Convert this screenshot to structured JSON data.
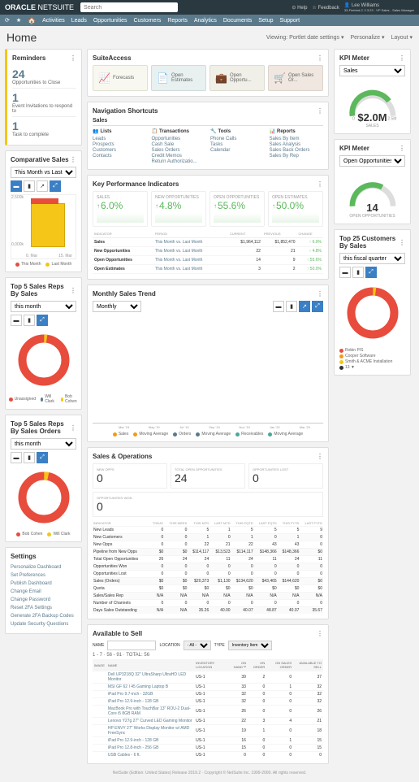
{
  "topbar": {
    "logo_bold": "ORACLE",
    "logo_light": "NETSUITE",
    "search_placeholder": "Search",
    "help": "Help",
    "feedback": "Feedback",
    "user_name": "Lee Williams",
    "user_sub": "33-Firebird-C 2.3.23 - VP Sales - Sales Manager"
  },
  "nav": {
    "items": [
      "Activities",
      "Leads",
      "Opportunities",
      "Customers",
      "Reports",
      "Analytics",
      "Documents",
      "Setup",
      "Support"
    ]
  },
  "header": {
    "title": "Home",
    "viewing": "Viewing: Portlet date settings ▾",
    "personalize": "Personalize ▾",
    "layout": "Layout ▾"
  },
  "reminders": {
    "title": "Reminders",
    "items": [
      {
        "n": "24",
        "label": "Opportunities to Close"
      },
      {
        "n": "1",
        "label": "Event Invitations to respond to"
      },
      {
        "n": "1",
        "label": "Task to complete"
      }
    ]
  },
  "comp_sales": {
    "title": "Comparative Sales",
    "range": "This Month vs Last Month",
    "ylabels": [
      "2,500k",
      "2,000k",
      "1,500k",
      "1,000k",
      "0,500k",
      "0,000k"
    ],
    "xlabels": [
      "0. Mar",
      "15. Mar"
    ],
    "legend": [
      {
        "c": "#e74c3c",
        "t": "This Month"
      },
      {
        "c": "#f5c518",
        "t": "Last Month"
      }
    ]
  },
  "top5_sales": {
    "title": "Top 5 Sales Reps By Sales",
    "range": "this month",
    "legend": [
      {
        "c": "#e74c3c",
        "t": "Unassigned"
      },
      {
        "c": "#5a7a8c",
        "t": "Will Clark"
      },
      {
        "c": "#f5c518",
        "t": "Bob Cohen"
      }
    ]
  },
  "top5_orders": {
    "title": "Top 5 Sales Reps By Sales Orders",
    "range": "this month",
    "legend": [
      {
        "c": "#e74c3c",
        "t": "Bob Cohen"
      },
      {
        "c": "#f5c518",
        "t": "Will Clark"
      }
    ]
  },
  "settings": {
    "title": "Settings",
    "items": [
      "Personalize Dashboard",
      "Set Preferences",
      "Publish Dashboard",
      "Change Email",
      "Change Password",
      "Reset 2FA Settings",
      "Generate 2FA Backup Codes",
      "Update Security Questions"
    ]
  },
  "suite_access": {
    "title": "SuiteAccess",
    "tiles": [
      {
        "icon": "📈",
        "label": "Forecasts"
      },
      {
        "icon": "📄",
        "label": "Open Estimates"
      },
      {
        "icon": "💼",
        "label": "Open Opportu..."
      },
      {
        "icon": "🛒",
        "label": "Open Sales Or..."
      }
    ]
  },
  "shortcuts": {
    "title": "Navigation Shortcuts",
    "tabs": [
      "Sales"
    ],
    "cols": [
      {
        "title": "Lists",
        "icon": "👥",
        "items": [
          "Leads",
          "Prospects",
          "Customers",
          "Contacts"
        ]
      },
      {
        "title": "Transactions",
        "icon": "📋",
        "items": [
          "Opportunities",
          "Cash Sale",
          "Sales Orders",
          "Credit Memos",
          "Return Authorizatio..."
        ]
      },
      {
        "title": "Tools",
        "icon": "🔧",
        "items": [
          "Phone Calls",
          "Tasks",
          "Calendar"
        ]
      },
      {
        "title": "Reports",
        "icon": "📊",
        "items": [
          "Sales By Item",
          "Sales Analysis",
          "Sales Back Orders",
          "Sales By Rep"
        ]
      }
    ]
  },
  "kpi": {
    "title": "Key Performance Indicators",
    "tiles": [
      {
        "label": "SALES",
        "val": "6.0%",
        "color": "#5cb85c",
        "arrow": "↑"
      },
      {
        "label": "NEW OPPORTUNITIES",
        "val": "4.8%",
        "color": "#5cb85c",
        "arrow": "↑"
      },
      {
        "label": "OPEN OPPORTUNITIES",
        "val": "55.6%",
        "color": "#5cb85c",
        "arrow": "↑"
      },
      {
        "label": "OPEN ESTIMATES",
        "val": "50.0%",
        "color": "#5cb85c",
        "arrow": "↑"
      }
    ],
    "cols": [
      "INDICATOR",
      "PERIOD",
      "CURRENT",
      "PREVIOUS",
      "CHANGE"
    ],
    "rows": [
      [
        "Sales",
        "This Month vs. Last Month",
        "$1,964,112",
        "$1,852,470",
        "↑ 6.0%"
      ],
      [
        "New Opportunities",
        "This Month vs. Last Month",
        "22",
        "21",
        "↑ 4.8%"
      ],
      [
        "Open Opportunities",
        "This Month vs. Last Month",
        "14",
        "9",
        "↑ 55.6%"
      ],
      [
        "Open Estimates",
        "This Month vs. Last Month",
        "3",
        "2",
        "↑ 50.0%"
      ]
    ]
  },
  "monthly": {
    "title": "Monthly Sales Trend",
    "range": "Monthly",
    "ylabels": [
      "3,000,000",
      "2,500,000",
      "2,000,000",
      "1,500,000",
      "1,000,000",
      "500,000"
    ],
    "months": [
      "Mar '19",
      "May '19",
      "Jul '19",
      "Sep '19",
      "Nov '19",
      "Jan '20",
      "Mar '20"
    ],
    "bars": [
      {
        "o": 55,
        "b": 40,
        "t": 25
      },
      {
        "o": 60,
        "b": 45,
        "t": 28
      },
      {
        "o": 62,
        "b": 48,
        "t": 30
      },
      {
        "o": 58,
        "b": 42,
        "t": 32
      },
      {
        "o": 70,
        "b": 50,
        "t": 35
      },
      {
        "o": 75,
        "b": 55,
        "t": 38
      },
      {
        "o": 72,
        "b": 52,
        "t": 36
      },
      {
        "o": 78,
        "b": 58,
        "t": 40
      },
      {
        "o": 82,
        "b": 60,
        "t": 42
      },
      {
        "o": 88,
        "b": 62,
        "t": 44
      },
      {
        "o": 80,
        "b": 55,
        "t": 40
      },
      {
        "o": 85,
        "b": 60,
        "t": 42
      },
      {
        "o": 90,
        "b": 58,
        "t": 40
      }
    ],
    "legend": [
      "Sales",
      "Moving Average",
      "Orders",
      "Moving Average",
      "Receivables",
      "Moving Average"
    ]
  },
  "kpi_meter1": {
    "title": "KPI Meter",
    "label": "Sales",
    "value": "$2.0M",
    "sub": "SALES",
    "min": "0",
    "max": "2.5M",
    "target": "1.9M"
  },
  "kpi_meter2": {
    "title": "KPI Meter",
    "label": "Open Opportunities",
    "value": "14",
    "sub": "OPEN OPPORTUNITIES",
    "min": "0",
    "max": "20"
  },
  "top25": {
    "title": "Top 25 Customers By Sales",
    "range": "this fiscal quarter",
    "legend": [
      {
        "c": "#e74c3c",
        "t": "Robin P/S"
      },
      {
        "c": "#f39c12",
        "t": "Cooper Software"
      },
      {
        "c": "#f5c518",
        "t": "Smith & ACME Installation"
      },
      {
        "c": "#333",
        "t": "13 ▼"
      }
    ]
  },
  "sales_ops": {
    "title": "Sales & Operations",
    "tiles": [
      {
        "label": "NEW OPPS",
        "val": "0"
      },
      {
        "label": "TOTAL OPEN OPPORTUNITIES",
        "val": "24"
      },
      {
        "label": "OPPORTUNITIES LOST",
        "val": "0"
      }
    ],
    "tile2": {
      "label": "OPPORTUNITIES WON",
      "val": "0"
    },
    "cols": [
      "INDICATOR",
      "TODAY",
      "THIS WEEK",
      "THIS MTD",
      "LAST MTD",
      "THIS FQTD",
      "LAST FQTD",
      "THIS FYTD",
      "LAST FYTD"
    ],
    "rows": [
      [
        "New Leads",
        "0",
        "0",
        "5",
        "1",
        "5",
        "5",
        "5",
        "9"
      ],
      [
        "New Customers",
        "0",
        "0",
        "1",
        "0",
        "1",
        "0",
        "1",
        "0"
      ],
      [
        "New Opps",
        "0",
        "0",
        "22",
        "21",
        "22",
        "43",
        "43",
        "0"
      ],
      [
        "Pipeline from New Opps",
        "$0",
        "$0",
        "$114,117",
        "$13,523",
        "$114,117",
        "$148,366",
        "$148,366",
        "$0"
      ],
      [
        "Total Open Opportunities",
        "26",
        "24",
        "24",
        "11",
        "24",
        "11",
        "24",
        "11"
      ],
      [
        "Opportunities Won",
        "0",
        "0",
        "0",
        "0",
        "0",
        "0",
        "0",
        "0"
      ],
      [
        "Opportunities Lost",
        "0",
        "0",
        "0",
        "0",
        "0",
        "0",
        "0",
        "0"
      ],
      [
        "Sales (Orders)",
        "$0",
        "$0",
        "$20,373",
        "$1,130",
        "$134,620",
        "$43,465",
        "$144,620",
        "$0"
      ],
      [
        "Quota",
        "$0",
        "$0",
        "$0",
        "$0",
        "$0",
        "$0",
        "$0",
        "$0"
      ],
      [
        "Sales/Sales Rep",
        "N/A",
        "N/A",
        "N/A",
        "N/A",
        "N/A",
        "N/A",
        "N/A",
        "N/A"
      ],
      [
        "Number of Channels",
        "0",
        "0",
        "0",
        "0",
        "0",
        "0",
        "0",
        "0"
      ],
      [
        "Days Sales Outstanding",
        "N/A",
        "N/A",
        "35.26",
        "40.00",
        "40.07",
        "48.87",
        "40.07",
        "35.67"
      ]
    ]
  },
  "avail": {
    "title": "Available to Sell",
    "name_label": "NAME",
    "loc_label": "LOCATION",
    "loc_val": "- All -",
    "type_label": "TYPE",
    "type_val": "Inventory Item",
    "pager": "1 - 7 · 56 - 91 · TOTAL: 56",
    "cols": [
      "Image",
      "Name",
      "Inventory Location",
      "On Hand™",
      "On Order",
      "On Sales Order",
      "Available to Sell"
    ],
    "rows": [
      [
        "",
        "Dell UP3218Q 32\" UltraSharp UltraHD LED Monitor",
        "US-1",
        "39",
        "2",
        "0",
        "37"
      ],
      [
        "",
        "MSI GF 62 I 45 Gaming Laptop B",
        "US-1",
        "33",
        "0",
        "1",
        "32"
      ],
      [
        "",
        "iPad Pro 9.7-inch - 32GB",
        "US-1",
        "32",
        "0",
        "0",
        "32"
      ],
      [
        "",
        "iPad Pro 12.9-inch - 128 GB",
        "US-1",
        "32",
        "0",
        "0",
        "32"
      ],
      [
        "",
        "MacBook Pro with TouchBar 13\" ROU-2 Dual-Core i5 8GB RAM",
        "US-1",
        "26",
        "0",
        "0",
        "26"
      ],
      [
        "",
        "Lenovo Y27g 27\" Curved LED Gaming Monitor",
        "US-1",
        "22",
        "3",
        "4",
        "21"
      ],
      [
        "",
        "HP ENVY 27\" Works Display Monitor w/ AMD FreeSync",
        "US-1",
        "19",
        "1",
        "0",
        "18"
      ],
      [
        "",
        "iPad Pro 12.9-inch - 128 GB",
        "US-1",
        "16",
        "0",
        "1",
        "15"
      ],
      [
        "",
        "iPad Pro 12.8-inch - 256 GB",
        "US-1",
        "15",
        "0",
        "0",
        "15"
      ],
      [
        "",
        "USB Cables - 6 ft.",
        "US-1",
        "0",
        "0",
        "0",
        "0"
      ]
    ]
  },
  "footer": "NetSuite (Edition: United States) Release 2019.2 · Copyright © NetSuite Inc. 1999-2000. All rights reserved."
}
